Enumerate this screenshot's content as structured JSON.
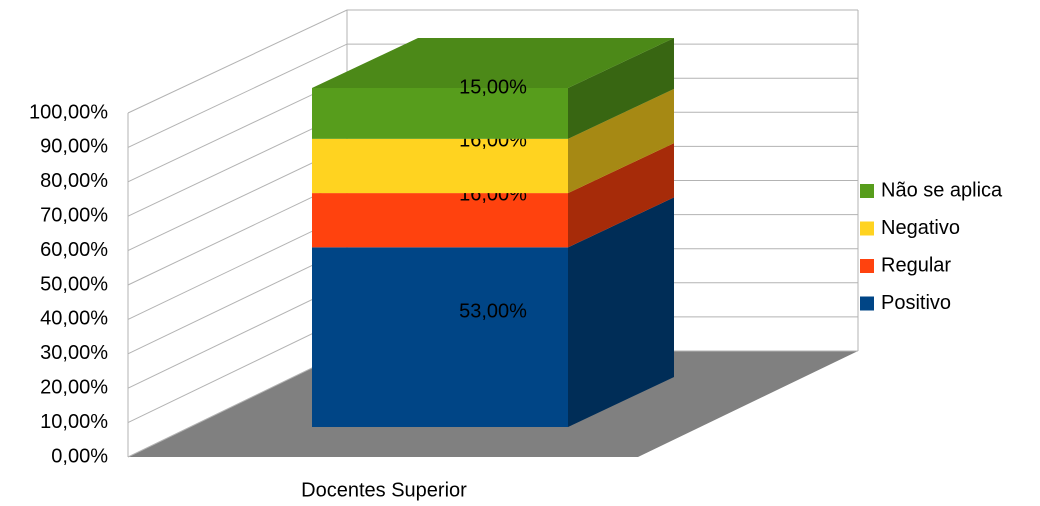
{
  "chart_data": {
    "type": "bar3d_stacked",
    "categories": [
      "Docentes Superior"
    ],
    "series": [
      {
        "name": "Positivo",
        "color": "#004586",
        "values": [
          53
        ],
        "value_labels": [
          "53,00%"
        ]
      },
      {
        "name": "Regular",
        "color": "#ff420e",
        "values": [
          16
        ],
        "value_labels": [
          "16,00%"
        ]
      },
      {
        "name": "Negativo",
        "color": "#ffd320",
        "values": [
          16
        ],
        "value_labels": [
          "16,00%"
        ]
      },
      {
        "name": "Não se aplica",
        "color": "#579d1c",
        "values": [
          15
        ],
        "value_labels": [
          "15,00%"
        ]
      }
    ],
    "ylim": [
      0,
      100
    ],
    "yticks": [
      {
        "value": 0,
        "label": "0,00%"
      },
      {
        "value": 10,
        "label": "10,00%"
      },
      {
        "value": 20,
        "label": "20,00%"
      },
      {
        "value": 30,
        "label": "30,00%"
      },
      {
        "value": 40,
        "label": "40,00%"
      },
      {
        "value": 50,
        "label": "50,00%"
      },
      {
        "value": 60,
        "label": "60,00%"
      },
      {
        "value": 70,
        "label": "70,00%"
      },
      {
        "value": 80,
        "label": "80,00%"
      },
      {
        "value": 90,
        "label": "90,00%"
      },
      {
        "value": 100,
        "label": "100,00%"
      }
    ],
    "grid": true,
    "legend": "right"
  }
}
